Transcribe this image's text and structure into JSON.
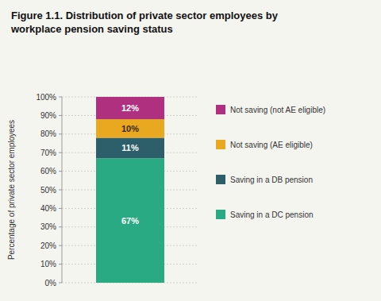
{
  "chart_data": {
    "type": "bar",
    "stacked": true,
    "title": "Figure 1.1. Distribution of private sector employees by\nworkplace pension saving status",
    "ylabel": "Percentage of private sector employees",
    "categories": [
      null
    ],
    "series": [
      {
        "name": "Saving in a DC pension",
        "color": "#2aaa82",
        "values": [
          67
        ],
        "value_labels": [
          "67%"
        ]
      },
      {
        "name": "Saving in a DB pension",
        "color": "#2d5f6a",
        "values": [
          11
        ],
        "value_labels": [
          "11%"
        ]
      },
      {
        "name": "Not saving (AE eligible)",
        "color": "#e8a820",
        "values": [
          10
        ],
        "value_labels": [
          "10%"
        ]
      },
      {
        "name": "Not saving (not AE eligible)",
        "color": "#b03080",
        "values": [
          12
        ],
        "value_labels": [
          "12%"
        ]
      }
    ],
    "ylim": [
      0,
      100
    ],
    "yticks": [
      {
        "value": 0,
        "label": "0%"
      },
      {
        "value": 10,
        "label": "10%"
      },
      {
        "value": 20,
        "label": "20%"
      },
      {
        "value": 30,
        "label": "30%"
      },
      {
        "value": 40,
        "label": "40%"
      },
      {
        "value": 50,
        "label": "50%"
      },
      {
        "value": 60,
        "label": "60%"
      },
      {
        "value": 70,
        "label": "70%"
      },
      {
        "value": 80,
        "label": "80%"
      },
      {
        "value": 90,
        "label": "90%"
      },
      {
        "value": 100,
        "label": "100%"
      }
    ],
    "grid": true,
    "data_labels": true,
    "legend": "right"
  }
}
